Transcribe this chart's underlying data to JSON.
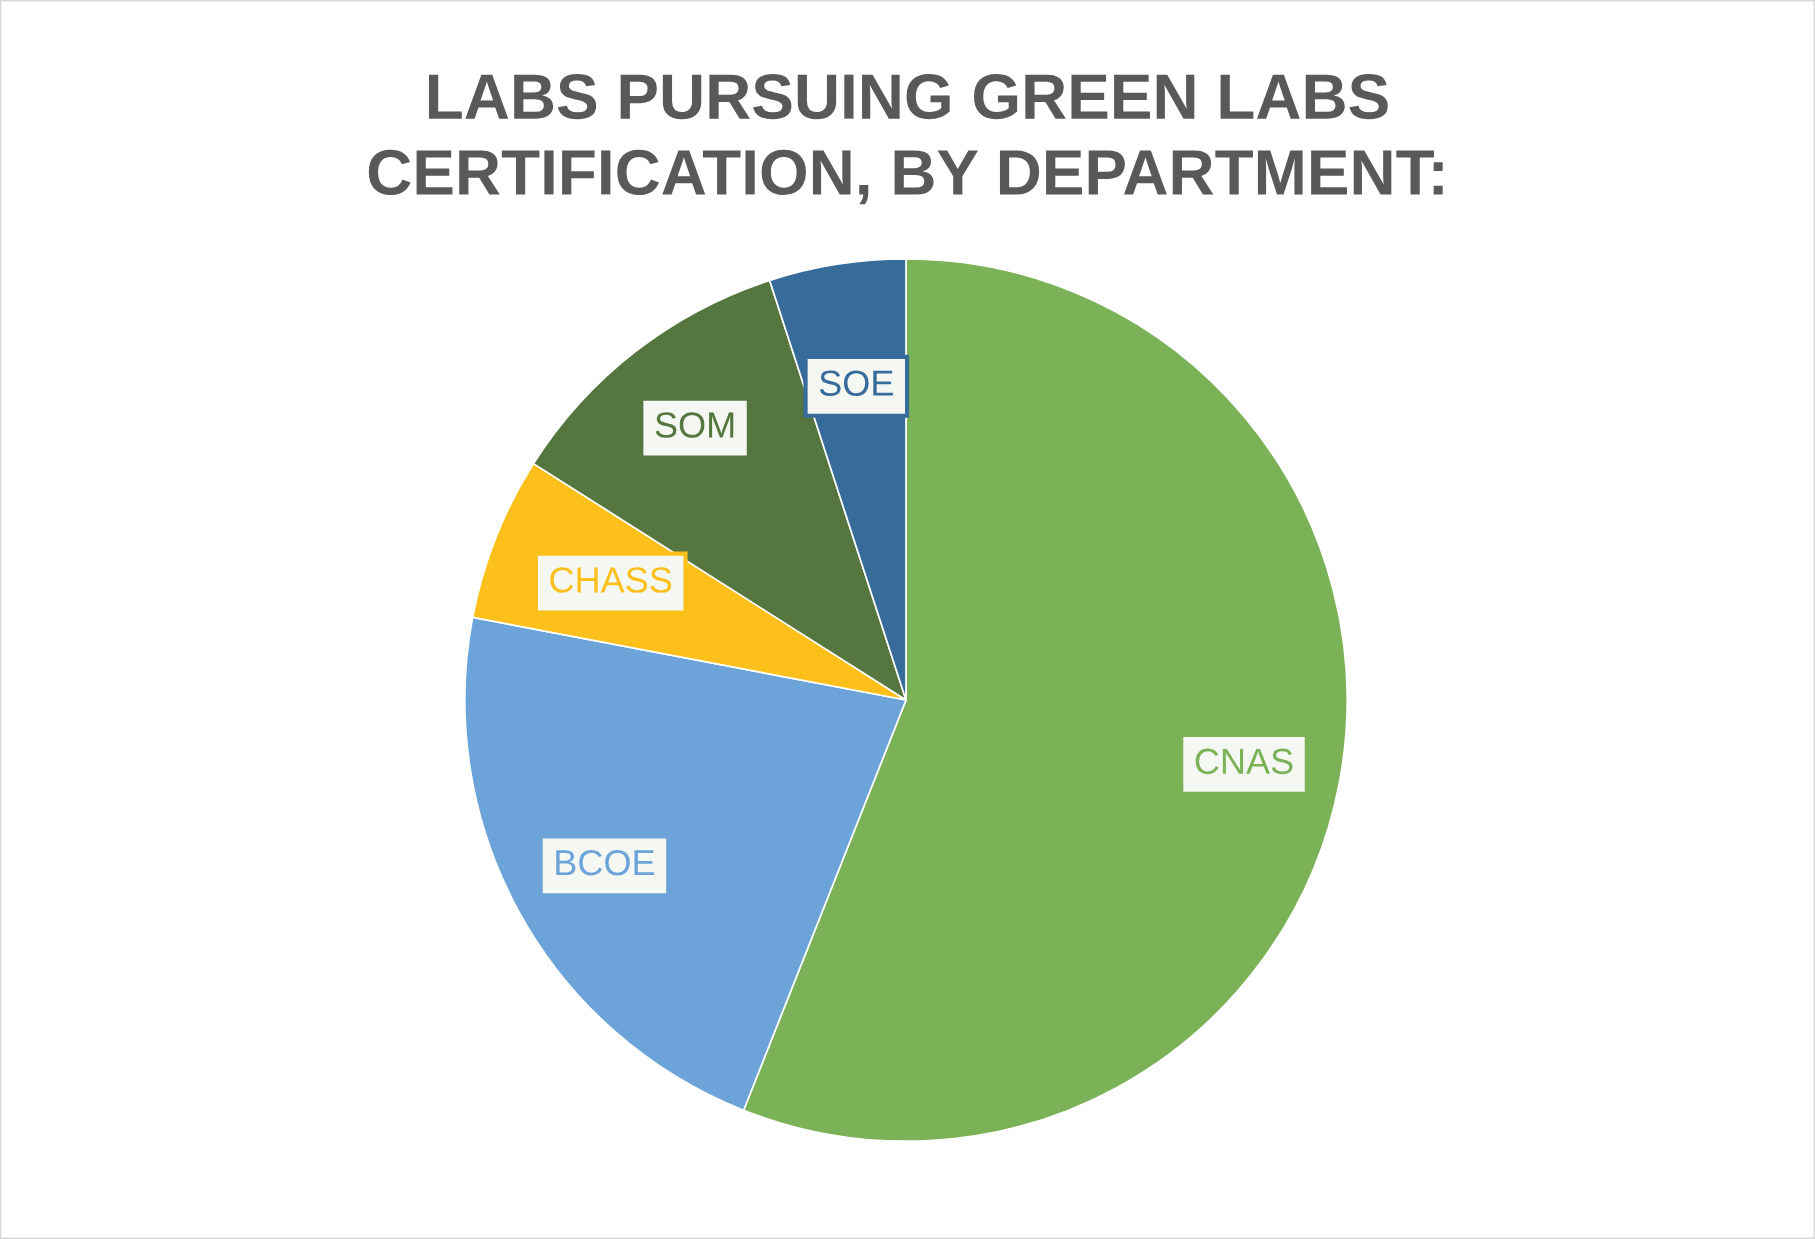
{
  "chart_data": {
    "type": "pie",
    "title": "LABS PURSUING GREEN LABS\nCERTIFICATION, BY DEPARTMENT:",
    "categories": [
      "CNAS",
      "BCOE",
      "CHASS",
      "SOM",
      "SOE"
    ],
    "values": [
      56,
      22,
      6,
      11,
      5
    ],
    "colors": [
      "#7cb257",
      "#6ca3d8",
      "#fdc01a",
      "#55763f",
      "#376b9a"
    ],
    "legend": false
  }
}
